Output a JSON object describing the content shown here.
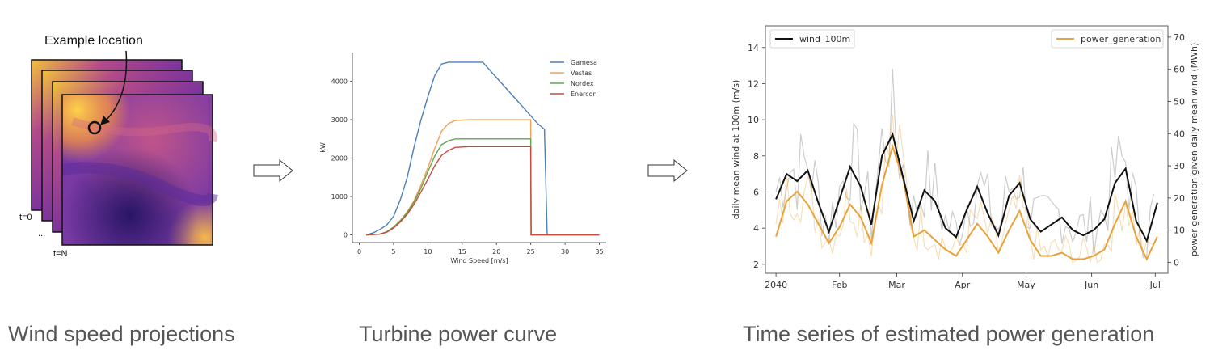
{
  "panel1": {
    "location_label": "Example location",
    "frame_labels": [
      "t=0",
      "...",
      "t=N"
    ],
    "caption": "Wind speed projections"
  },
  "panel2": {
    "caption": "Turbine power curve"
  },
  "panel3": {
    "caption": "Time series of estimated power generation"
  },
  "colors": {
    "gamesa": "#4c7fb8",
    "vestas": "#f0a057",
    "nordex": "#5aaa4e",
    "enercon": "#c84a3e",
    "wind": "#111111",
    "power": "#e8a23a"
  },
  "chart_data": [
    {
      "type": "line",
      "xlabel": "Wind Speed [m/s]",
      "ylabel": "kW",
      "xlim": [
        -1,
        36
      ],
      "ylim": [
        -200,
        4750
      ],
      "xticks": [
        0,
        5,
        10,
        15,
        20,
        25,
        30,
        35
      ],
      "yticks": [
        0,
        1000,
        2000,
        3000,
        4000
      ],
      "legend": "top-right",
      "series": [
        {
          "name": "Gamesa",
          "x": [
            1,
            2,
            3,
            4,
            5,
            6,
            7,
            8,
            9,
            10,
            11,
            12,
            13,
            14,
            16,
            18,
            20,
            22,
            24,
            26,
            27,
            27.4,
            35
          ],
          "values": [
            0,
            50,
            140,
            260,
            480,
            920,
            1500,
            2300,
            3000,
            3600,
            4150,
            4450,
            4500,
            4500,
            4500,
            4500,
            4100,
            3700,
            3300,
            2900,
            2750,
            0,
            0
          ]
        },
        {
          "name": "Vestas",
          "x": [
            1,
            3,
            4,
            5,
            6,
            7,
            8,
            9,
            10,
            11,
            12,
            13,
            14,
            16,
            20,
            25,
            25.05,
            35
          ],
          "values": [
            0,
            20,
            80,
            200,
            380,
            600,
            900,
            1300,
            1750,
            2250,
            2700,
            2900,
            2980,
            3000,
            3000,
            3000,
            0,
            0
          ]
        },
        {
          "name": "Nordex",
          "x": [
            1,
            3,
            4,
            5,
            6,
            7,
            8,
            9,
            10,
            11,
            12,
            13,
            14,
            16,
            20,
            25,
            25.05,
            35
          ],
          "values": [
            0,
            20,
            80,
            200,
            370,
            580,
            860,
            1220,
            1650,
            2050,
            2350,
            2450,
            2500,
            2500,
            2500,
            2500,
            0,
            0
          ]
        },
        {
          "name": "Enercon",
          "x": [
            1,
            3,
            4,
            5,
            6,
            7,
            8,
            9,
            10,
            11,
            12,
            13,
            14,
            16,
            20,
            25,
            25.05,
            35
          ],
          "values": [
            0,
            20,
            70,
            180,
            340,
            540,
            800,
            1120,
            1450,
            1800,
            2070,
            2200,
            2280,
            2300,
            2300,
            2300,
            0,
            0
          ]
        }
      ]
    },
    {
      "type": "line",
      "xticks": [
        "2040",
        "Feb",
        "Mar",
        "Apr",
        "May",
        "Jun",
        "Jul"
      ],
      "ylabel": "daily mean wind at 100m (m/s)",
      "ylabel2": "power generation given daily mean wind (MWh)",
      "ylim": [
        1.5,
        15.2
      ],
      "ylim2": [
        -3.4,
        73.5
      ],
      "yticks": [
        2,
        4,
        6,
        8,
        10,
        12,
        14
      ],
      "yticks2": [
        0,
        10,
        20,
        30,
        40,
        50,
        60,
        70
      ],
      "legend_left": "wind_100m",
      "legend_right": "power_generation",
      "series": [
        {
          "name": "wind_100m",
          "axis": "left",
          "x": [
            0,
            5,
            10,
            15,
            20,
            25,
            30,
            35,
            40,
            45,
            50,
            55,
            60,
            65,
            70,
            75,
            80,
            85,
            90,
            95,
            100,
            105,
            110,
            115,
            120,
            125,
            130,
            135,
            140,
            145,
            150,
            155,
            160,
            165,
            170,
            175,
            180
          ],
          "values": [
            5.6,
            7.0,
            6.6,
            7.2,
            5.4,
            3.8,
            5.6,
            7.4,
            6.3,
            4.2,
            8.0,
            9.2,
            6.8,
            4.4,
            6.1,
            5.5,
            4.0,
            3.5,
            5.0,
            6.3,
            4.8,
            3.6,
            5.8,
            6.5,
            4.5,
            3.8,
            4.2,
            4.6,
            3.9,
            3.6,
            3.9,
            4.5,
            6.5,
            7.3,
            4.4,
            3.3,
            5.4
          ]
        },
        {
          "name": "power_generation",
          "axis": "right",
          "x": [
            0,
            5,
            10,
            15,
            20,
            25,
            30,
            35,
            40,
            45,
            50,
            55,
            60,
            65,
            70,
            75,
            80,
            85,
            90,
            95,
            100,
            105,
            110,
            115,
            120,
            125,
            130,
            135,
            140,
            145,
            150,
            155,
            160,
            165,
            170,
            175,
            180
          ],
          "values": [
            8,
            19,
            22,
            18,
            12,
            6,
            11,
            18,
            14,
            6,
            24,
            36,
            26,
            8,
            10,
            7,
            4,
            2,
            7,
            12,
            8,
            3,
            10,
            16,
            7,
            2,
            2,
            3,
            1,
            1,
            2,
            4,
            12,
            19,
            8,
            1,
            8
          ]
        }
      ]
    }
  ]
}
